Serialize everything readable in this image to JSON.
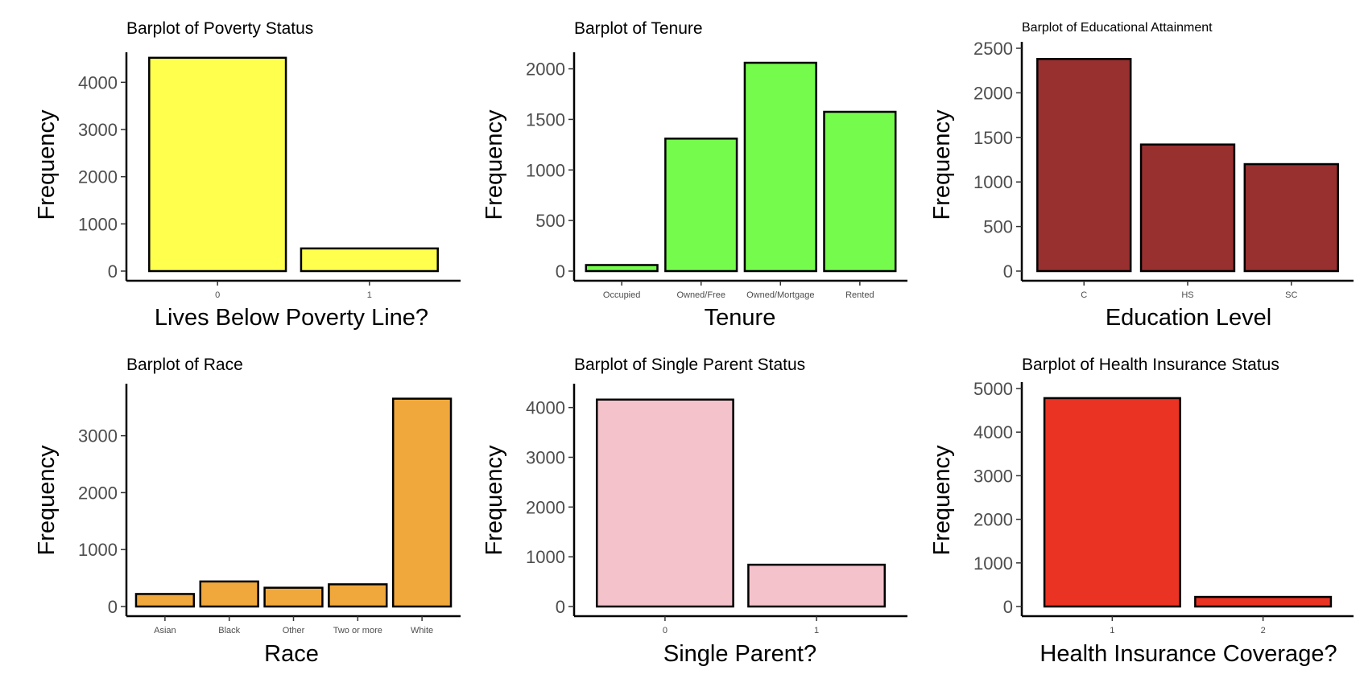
{
  "chart_data": [
    {
      "type": "bar",
      "title": "Barplot of Poverty Status",
      "xlabel": "Lives Below Poverty Line?",
      "ylabel": "Frequency",
      "categories": [
        "0",
        "1"
      ],
      "values": [
        4520,
        480
      ],
      "ylim": [
        0,
        4500
      ],
      "yticks": [
        0,
        1000,
        2000,
        3000,
        4000
      ],
      "color": "#ffff4d",
      "grid": false
    },
    {
      "type": "bar",
      "title": "Barplot of Tenure",
      "xlabel": "Tenure",
      "ylabel": "Frequency",
      "categories": [
        "Occupied",
        "Owned/Free",
        "Owned/Mortgage",
        "Rented"
      ],
      "values": [
        60,
        1310,
        2060,
        1575
      ],
      "ylim": [
        0,
        2100
      ],
      "yticks": [
        0,
        500,
        1000,
        1500,
        2000
      ],
      "color": "#75fb4c",
      "grid": false
    },
    {
      "type": "bar",
      "title": "Barplot of Educational Attainment",
      "xlabel": "Education Level",
      "ylabel": "Frequency",
      "categories": [
        "C",
        "HS",
        "SC"
      ],
      "values": [
        2380,
        1420,
        1200
      ],
      "ylim": [
        0,
        2500
      ],
      "yticks": [
        0,
        500,
        1000,
        1500,
        2000,
        2500
      ],
      "color": "#983030",
      "grid": false
    },
    {
      "type": "bar",
      "title": "Barplot of Race",
      "xlabel": "Race",
      "ylabel": "Frequency",
      "categories": [
        "Asian",
        "Black",
        "Other",
        "Two or more",
        "White"
      ],
      "values": [
        220,
        440,
        330,
        390,
        3650
      ],
      "ylim": [
        0,
        3800
      ],
      "yticks": [
        0,
        1000,
        2000,
        3000
      ],
      "color": "#f0a83c",
      "grid": false
    },
    {
      "type": "bar",
      "title": "Barplot of Single Parent Status",
      "xlabel": "Single Parent?",
      "ylabel": "Frequency",
      "categories": [
        "0",
        "1"
      ],
      "values": [
        4160,
        840
      ],
      "ylim": [
        0,
        4350
      ],
      "yticks": [
        0,
        1000,
        2000,
        3000,
        4000
      ],
      "color": "#f4c2cb",
      "grid": false
    },
    {
      "type": "bar",
      "title": "Barplot of Health Insurance Status",
      "xlabel": "Health Insurance Coverage?",
      "ylabel": "Frequency",
      "categories": [
        "1",
        "2"
      ],
      "values": [
        4780,
        220
      ],
      "ylim": [
        0,
        5000
      ],
      "yticks": [
        0,
        1000,
        2000,
        3000,
        4000,
        5000
      ],
      "color": "#ea3323",
      "grid": false
    }
  ]
}
